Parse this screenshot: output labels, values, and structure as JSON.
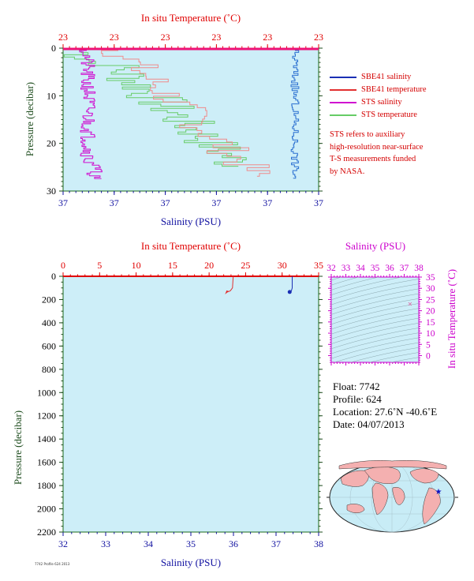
{
  "colors": {
    "sbe_salinity": "#1a2fb4",
    "sbe_temperature": "#e23030",
    "sts_salinity": "#d010d0",
    "sts_temperature": "#66cc66",
    "plot_bg": "#cdeef8",
    "temp_axis": "#e00000",
    "sal_axis": "#1010a0",
    "pressure_label": "#1e4d1e",
    "ts_axis": "#cc00cc"
  },
  "top_plot": {
    "temp_axis_title": "In situ Temperature (˚C)",
    "temp_ticks": [
      "23",
      "23",
      "23",
      "23",
      "23",
      "23"
    ],
    "pressure_axis_title": "Pressure (decibar)",
    "pressure_ticks": [
      "0",
      "10",
      "20",
      "30"
    ],
    "salinity_axis_title": "Salinity (PSU)",
    "salinity_ticks": [
      "37",
      "37",
      "37",
      "37",
      "37",
      "37"
    ]
  },
  "legend": {
    "items": [
      {
        "label": "SBE41 salinity",
        "color_key": "sbe_salinity"
      },
      {
        "label": "SBE41 temperature",
        "color_key": "sbe_temperature"
      },
      {
        "label": "STS salinity",
        "color_key": "sts_salinity"
      },
      {
        "label": "STS temperature",
        "color_key": "sts_temperature"
      }
    ],
    "note_lines": [
      "STS refers to auxiliary",
      "high-resolution near-surface",
      "T-S measurements funded",
      "by NASA."
    ]
  },
  "bottom_plot": {
    "temp_axis_title": "In situ Temperature (˚C)",
    "temp_ticks": [
      "0",
      "5",
      "10",
      "15",
      "20",
      "25",
      "30",
      "35"
    ],
    "pressure_axis_title": "Pressure (decibar)",
    "pressure_ticks": [
      "0",
      "200",
      "400",
      "600",
      "800",
      "1000",
      "1200",
      "1400",
      "1600",
      "1800",
      "2000",
      "2200"
    ],
    "salinity_axis_title": "Salinity (PSU)",
    "salinity_ticks": [
      "32",
      "33",
      "34",
      "35",
      "36",
      "37",
      "38"
    ]
  },
  "ts_plot": {
    "salinity_axis_title": "Salinity (PSU)",
    "salinity_ticks": [
      "32",
      "33",
      "34",
      "35",
      "36",
      "37",
      "38"
    ],
    "temp_axis_title": "In situ Temperature (˚C)",
    "temp_ticks": [
      "0",
      "5",
      "10",
      "15",
      "20",
      "25",
      "30",
      "35"
    ]
  },
  "float_info": {
    "float_line": "Float:  7742",
    "profile_line": "Profile:  624",
    "location_line": "Location:  27.6˚N  -40.6˚E",
    "date_line": "Date:  04/07/2013"
  },
  "footer_text": "7742 Profile 624 2013",
  "chart_data": [
    {
      "type": "line",
      "title": "",
      "xlabel": "Salinity (PSU)",
      "x2label": "In situ Temperature (˚C)",
      "ylabel": "Pressure (decibar)",
      "ylim": [
        0,
        30
      ],
      "y_inverted": true,
      "grid": false,
      "legend_placement": "right",
      "series": [
        {
          "name": "SBE41 salinity",
          "x": [
            37.4,
            37.4,
            37.41,
            37.4,
            37.41,
            37.4,
            37.41,
            37.4,
            37.4
          ],
          "y": [
            2,
            5,
            8,
            12,
            15,
            18,
            21,
            24,
            27
          ]
        },
        {
          "name": "SBE41 temperature",
          "x": [
            23.25,
            23.26,
            23.27,
            23.28,
            23.29,
            23.3,
            23.31,
            23.32
          ],
          "y": [
            0,
            3,
            7,
            11,
            15,
            19,
            23,
            27
          ]
        },
        {
          "name": "STS salinity",
          "x": [
            37.05,
            37.06,
            37.05,
            37.06,
            37.05,
            37.06,
            37.05
          ],
          "y": [
            1,
            5,
            10,
            15,
            20,
            25,
            28
          ]
        },
        {
          "name": "STS temperature",
          "x": [
            23.22,
            23.25,
            23.27,
            23.28,
            23.29,
            23.31,
            23.32
          ],
          "y": [
            0,
            3,
            7,
            12,
            17,
            22,
            27
          ]
        }
      ]
    },
    {
      "type": "line",
      "title": "",
      "xlabel": "Salinity (PSU)",
      "x2label": "In situ Temperature (˚C)",
      "ylabel": "Pressure (decibar)",
      "xlim": [
        32,
        38
      ],
      "x2lim": [
        0,
        35
      ],
      "ylim": [
        0,
        2200
      ],
      "y_inverted": true,
      "series": [
        {
          "name": "SBE41 salinity",
          "x": [
            37.38,
            37.38,
            37.36,
            37.32
          ],
          "y": [
            0,
            100,
            125,
            135
          ]
        },
        {
          "name": "SBE41 temperature",
          "x": [
            23.3,
            23.2,
            22.9,
            22.5
          ],
          "y": [
            0,
            100,
            125,
            135
          ]
        }
      ]
    },
    {
      "type": "scatter",
      "title": "",
      "xlabel": "Salinity (PSU)",
      "ylabel": "In situ Temperature (˚C)",
      "xlim": [
        32,
        38
      ],
      "ylim": [
        -3,
        35
      ],
      "series": [
        {
          "x": [
            37.4
          ],
          "y": [
            23.3
          ]
        }
      ]
    }
  ]
}
